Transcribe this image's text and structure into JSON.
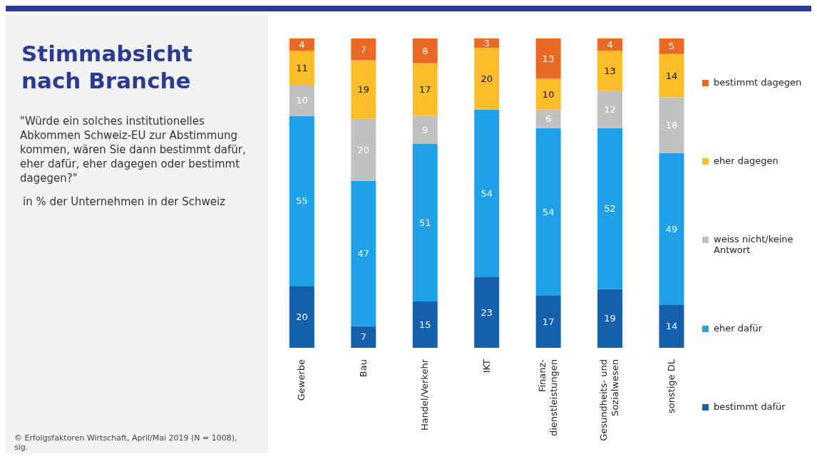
{
  "chart_data": {
    "type": "bar",
    "stacked": true,
    "title": "Stimmabsicht nach Branche",
    "subtitle": "\"Würde ein solches institutionelles Abkommen Schweiz-EU zur Abstimmung kommen, wären Sie dann bestimmt dafür, eher dafür, eher dagegen oder bestimmt dagegen?\"",
    "annotations": [
      "in % der Unternehmen in der Schweiz",
      "© Erfolgsfaktoren Wirtschaft, April/Mai 2019 (N = 1008), sig."
    ],
    "categories": [
      "Gewerbe",
      "Bau",
      "Handel/Verkehr",
      "IKT",
      "Finanz-\ndienstleistungen",
      "Gesundheits- und\nSozialwesen",
      "sonstige DL"
    ],
    "series": [
      {
        "name": "bestimmt dafür",
        "color": "#1560ad",
        "values": [
          20,
          7,
          15,
          23,
          17,
          19,
          14
        ]
      },
      {
        "name": "eher dafür",
        "color": "#1ea1e9",
        "values": [
          55,
          47,
          51,
          54,
          54,
          52,
          49
        ]
      },
      {
        "name": "weiss nicht/keine Antwort",
        "color": "#c1c1c1",
        "values": [
          10,
          20,
          9,
          null,
          6,
          12,
          18
        ]
      },
      {
        "name": "eher dagegen",
        "color": "#fbbd2a",
        "values": [
          11,
          19,
          17,
          20,
          10,
          13,
          14
        ]
      },
      {
        "name": "bestimmt dagegen",
        "color": "#ea6a25",
        "values": [
          4,
          7,
          8,
          3,
          13,
          4,
          5
        ]
      }
    ],
    "data_labels": true,
    "legend": "right",
    "grid": false,
    "tick_labels": "x"
  }
}
